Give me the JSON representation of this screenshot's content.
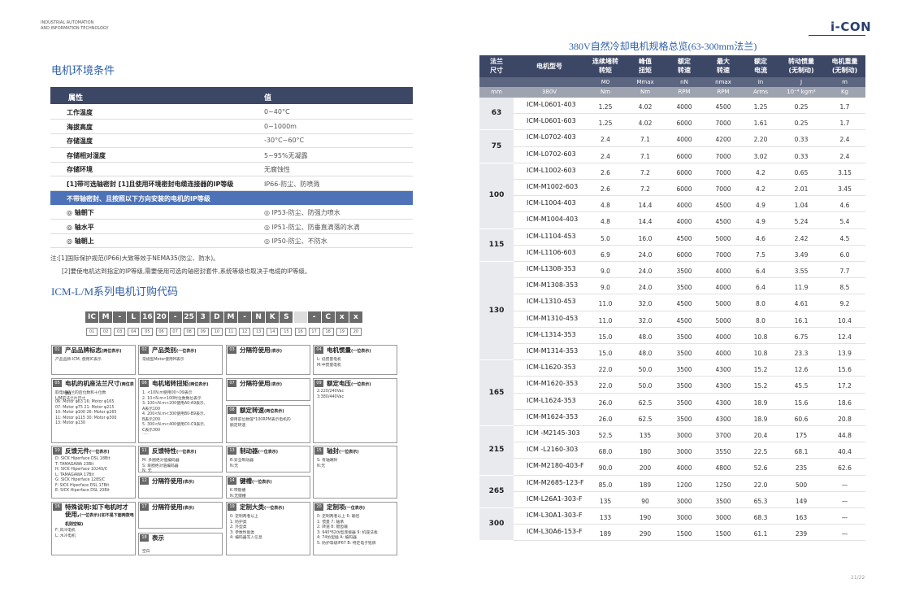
{
  "header": {
    "brand": [
      "INDUSTRIAL AUTOMATION",
      "AND INFORMATION TECHNOLOGY"
    ],
    "logo": "i-CON",
    "page_number": "21/22"
  },
  "env_table": {
    "title": "电机环境条件",
    "header": [
      "属性",
      "值"
    ],
    "rows": [
      [
        "工作温度",
        "0~40°C"
      ],
      [
        "海拔高度",
        "0~1000m"
      ],
      [
        "存储温度",
        "-30°C~60°C"
      ],
      [
        "存储相对湿度",
        "5~95%无凝露"
      ],
      [
        "存储环境",
        "无腐蚀性"
      ],
      [
        "[1]带可选轴密封 [1]且使用环境密封电缆连接器的IP等级",
        "IP66-防尘、防喷溅"
      ],
      [
        "不带轴密封、且按照以下方向安装的电机的IP等级"
      ],
      [
        "◎ 轴朝下",
        "◎ IP53-防尘、防强力喷水"
      ],
      [
        "◎ 轴水平",
        "◎ IP51-防尘、防垂直滴落的水滴"
      ],
      [
        "◎ 轴朝上",
        "◎ IP50-防尘、不防水"
      ]
    ],
    "notes": [
      "注:[1]国际保护规范(IP66)大致等效于NEMA35(防尘、防水)。",
      "[2]要使电机达到指定的IP等级,需要使用可选的轴密封套件,系统等级也取决于电缆的IP等级。"
    ]
  },
  "order_code": {
    "title": "ICM-L/M系列电机订购代码",
    "code": [
      "IC",
      "M",
      "-",
      "L",
      "16",
      "20",
      "-",
      "25",
      "3",
      "D",
      "M",
      "-",
      "N",
      "K",
      "S",
      null,
      "-",
      "C",
      "x",
      "x"
    ],
    "positions": [
      "01",
      "02",
      "03",
      "04",
      "05",
      "06",
      "07",
      "08",
      "09",
      "10",
      "11",
      "12",
      "13",
      "14",
      "15",
      "16",
      "17",
      "18",
      "19",
      "20"
    ],
    "boxes": [
      {
        "num": "01",
        "title": "产品品牌标志",
        "note": "(两位表示)",
        "lines": [
          "产品品牌-ICM, 使用IC表示"
        ]
      },
      {
        "num": "02",
        "title": "产品类别",
        "note": "(一位表示)",
        "lines": [
          "常规型Motor使用M表示"
        ]
      },
      {
        "num": "03",
        "title": "分隔符使用",
        "note": "(表示)",
        "lines": []
      },
      {
        "num": "04",
        "title": "电机惯量",
        "note": "(一位表示)",
        "lines": [
          "L: 低惯量电机",
          "M:中惯量电机"
        ]
      },
      {
        "num": "05",
        "title": "电机的机座法兰尺寸",
        "note": "(两位表示)",
        "lines": [
          "取电机法兰的后位数和十位数",
          "L/M前法兰片尺寸",
          "06: Motor φ63    16: Motor φ165",
          "07: Motor φ75    21: Motor φ215",
          "10: Motor φ100   26: Motor φ265",
          "11: Motor φ115   30: Motor φ300",
          "13: Motor φ130"
        ]
      },
      {
        "num": "06",
        "title": "电机堵转扭矩",
        "note": "(两位表示)",
        "lines": [
          "1. <10N.m使用00~09表示",
          "2. 10<N.m<100时位数数位表示",
          "3. 100<N.m<200使用A0-A9表示,",
          "A表示100",
          "4. 200<N.m<300使用B0-B9表示,",
          "B表示200",
          "5. 300<N.m<400使用C0-C9表示,",
          "C表示300",
          "....."
        ]
      },
      {
        "num": "07",
        "title": "分隔符使用",
        "note": "(表示)",
        "lines": []
      },
      {
        "num": "08",
        "title": "额定转速",
        "note": "(两位表示)",
        "lines": [
          "使用前位数值*100RPM表示电机的",
          "额定转速"
        ]
      },
      {
        "num": "09",
        "title": "额定电压",
        "note": "(一位表示)",
        "lines": [
          "2:220/240Vac",
          "3:380/440Vac"
        ]
      },
      {
        "num": "10",
        "title": "反馈元件",
        "note": "(一位表示)",
        "lines": [
          "D: SICK Hiperface DSL 18Bit",
          "T: TAMAGAWA 23Bit",
          "H: SICK Hiperface 1024S/C",
          "L: TAMAGAWA 17Bit",
          "G: SICK Hiperface 128S/C",
          "F: SICK Hiperface DSL 17Bit",
          "E: SICK Hiperface DSL 20Bit"
        ]
      },
      {
        "num": "11",
        "title": "反馈特性",
        "note": "(一位表示)",
        "lines": [
          "M: 多圈绝对值编码器",
          "S: 单圈绝对值编码器",
          "N: 无"
        ]
      },
      {
        "num": "12",
        "title": "分隔符使用",
        "note": "(表示)",
        "lines": []
      },
      {
        "num": "13",
        "title": "制动器",
        "note": "(一位表示)",
        "lines": [
          "B:安全制动器",
          "N:无"
        ]
      },
      {
        "num": "14",
        "title": "键槽",
        "note": "(一位表示)",
        "lines": [
          "K:带键槽",
          "N:无键槽"
        ]
      },
      {
        "num": "15",
        "title": "轴封",
        "note": "(一位表示)",
        "lines": [
          "S: 有轴端封",
          "N:无"
        ]
      },
      {
        "num": "16",
        "title": "特殊说明:如下电机时才使用,",
        "note": "(一位表示)(如不是下面两款电机则空缺)",
        "lines": [
          "F: 风冷电机",
          "L: 水冷电机"
        ]
      },
      {
        "num": "17",
        "title": "分隔符使用",
        "note": "(表示)",
        "lines": []
      },
      {
        "num": "18",
        "title": "表示",
        "note": null,
        "lines": [
          "空白"
        ]
      },
      {
        "num": "19",
        "title": "定制大类",
        "note": "(一位表示)",
        "lines": [
          "0: 定制两者以上",
          "1: 防护类",
          "2: 外型类",
          "3: 参数性能类",
          "4: 编码器写入信息"
        ]
      },
      {
        "num": "20",
        "title": "定制项",
        "note": "(一位表示)",
        "lines": [
          "0: 定制两者以上   6: 输径",
          "1: 惯量           7: 轴承",
          "2: 转速           8: 键齿输",
          "3: 940*62仿型连接器 9: 机座法板",
          "4: 74仿型插        A: 编码器",
          "5: 防护等级IP67    B: 特定电子铭牌"
        ]
      }
    ]
  },
  "spec_table": {
    "title": "380V自然冷却电机规格总览(63-300mm法兰)",
    "columns": [
      [
        "法兰",
        "尺寸"
      ],
      [
        "电机型号"
      ],
      [
        "连续堵转",
        "转矩"
      ],
      [
        "峰值",
        "扭矩"
      ],
      [
        "额定",
        "转速"
      ],
      [
        "最大",
        "转速"
      ],
      [
        "额定",
        "电流"
      ],
      [
        "转动惯量",
        "(无制动)"
      ],
      [
        "电机重量",
        "(无制动)"
      ]
    ],
    "symbols": [
      null,
      null,
      "M0",
      "Mmax",
      "nN",
      "nmax",
      "In",
      "J",
      "m"
    ],
    "units": [
      "mm",
      "380V",
      "Nm",
      "Nm",
      "RPM",
      "RPM",
      "Arms",
      "10⁻⁴ kgm²",
      "Kg"
    ],
    "groups": [
      {
        "flange": "63",
        "rows": [
          [
            "ICM-L0601-403",
            "1.25",
            "4.02",
            "4000",
            "4500",
            "1.25",
            "0.25",
            "1.7"
          ],
          [
            "ICM-L0601-603",
            "1.25",
            "4.02",
            "6000",
            "7000",
            "1.61",
            "0.25",
            "1.7"
          ]
        ]
      },
      {
        "flange": "75",
        "rows": [
          [
            "ICM-L0702-403",
            "2.4",
            "7.1",
            "4000",
            "4200",
            "2.20",
            "0.33",
            "2.4"
          ],
          [
            "ICM-L0702-603",
            "2.4",
            "7.1",
            "6000",
            "7000",
            "3.02",
            "0.33",
            "2.4"
          ]
        ]
      },
      {
        "flange": "100",
        "rows": [
          [
            "ICM-L1002-603",
            "2.6",
            "7.2",
            "6000",
            "7000",
            "4.2",
            "0.65",
            "3.15"
          ],
          [
            "ICM-M1002-603",
            "2.6",
            "7.2",
            "6000",
            "7000",
            "4.2",
            "2.01",
            "3.45"
          ],
          [
            "ICM-L1004-403",
            "4.8",
            "14.4",
            "4000",
            "4500",
            "4.9",
            "1.04",
            "4.6"
          ],
          [
            "ICM-M1004-403",
            "4.8",
            "14.4",
            "4000",
            "4500",
            "4.9",
            "5.24",
            "5.4"
          ]
        ]
      },
      {
        "flange": "115",
        "rows": [
          [
            "ICM-L1104-453",
            "5.0",
            "16.0",
            "4500",
            "5000",
            "4.6",
            "2.42",
            "4.5"
          ],
          [
            "ICM-L1106-603",
            "6.9",
            "24.0",
            "6000",
            "7000",
            "7.5",
            "3.49",
            "6.0"
          ]
        ]
      },
      {
        "flange": "130",
        "rows": [
          [
            "ICM-L1308-353",
            "9.0",
            "24.0",
            "3500",
            "4000",
            "6.4",
            "3.55",
            "7.7"
          ],
          [
            "ICM-M1308-353",
            "9.0",
            "24.0",
            "3500",
            "4000",
            "6.4",
            "11.9",
            "8.5"
          ],
          [
            "ICM-L1310-453",
            "11.0",
            "32.0",
            "4500",
            "5000",
            "8.0",
            "4.61",
            "9.2"
          ],
          [
            "ICM-M1310-453",
            "11.0",
            "32.0",
            "4500",
            "5000",
            "8.0",
            "16.1",
            "10.4"
          ],
          [
            "ICM-L1314-353",
            "15.0",
            "48.0",
            "3500",
            "4000",
            "10.8",
            "6.75",
            "12.4"
          ],
          [
            "ICM-M1314-353",
            "15.0",
            "48.0",
            "3500",
            "4000",
            "10.8",
            "23.3",
            "13.9"
          ]
        ]
      },
      {
        "flange": "165",
        "rows": [
          [
            "ICM-L1620-353",
            "22.0",
            "50.0",
            "3500",
            "4300",
            "15.2",
            "12.6",
            "15.6"
          ],
          [
            "ICM-M1620-353",
            "22.0",
            "50.0",
            "3500",
            "4300",
            "15.2",
            "45.5",
            "17.2"
          ],
          [
            "ICM-L1624-353",
            "26.0",
            "62.5",
            "3500",
            "4300",
            "18.9",
            "15.6",
            "18.6"
          ],
          [
            "ICM-M1624-353",
            "26.0",
            "62.5",
            "3500",
            "4300",
            "18.9",
            "60.6",
            "20.8"
          ]
        ]
      },
      {
        "flange": "215",
        "rows": [
          [
            "ICM -M2145-303",
            "52.5",
            "135",
            "3000",
            "3700",
            "20.4",
            "175",
            "44.8"
          ],
          [
            "ICM -L2160-303",
            "68.0",
            "180",
            "3000",
            "3550",
            "22.5",
            "68.1",
            "40.4"
          ],
          [
            "ICM-M2180-403-F",
            "90.0",
            "200",
            "4000",
            "4800",
            "52.6",
            "235",
            "62.6"
          ]
        ]
      },
      {
        "flange": "265",
        "rows": [
          [
            "ICM-M2685-123-F",
            "85.0",
            "189",
            "1200",
            "1250",
            "22.0",
            "500",
            "—"
          ],
          [
            "ICM-L26A1-303-F",
            "135",
            "90",
            "3000",
            "3500",
            "65.3",
            "149",
            "—"
          ]
        ]
      },
      {
        "flange": "300",
        "rows": [
          [
            "ICM-L30A1-303-F",
            "133",
            "190",
            "3000",
            "3000",
            "68.3",
            "163",
            "—"
          ],
          [
            "ICM-L30A6-153-F",
            "189",
            "290",
            "1500",
            "1500",
            "61.1",
            "239",
            "—"
          ]
        ]
      }
    ]
  }
}
